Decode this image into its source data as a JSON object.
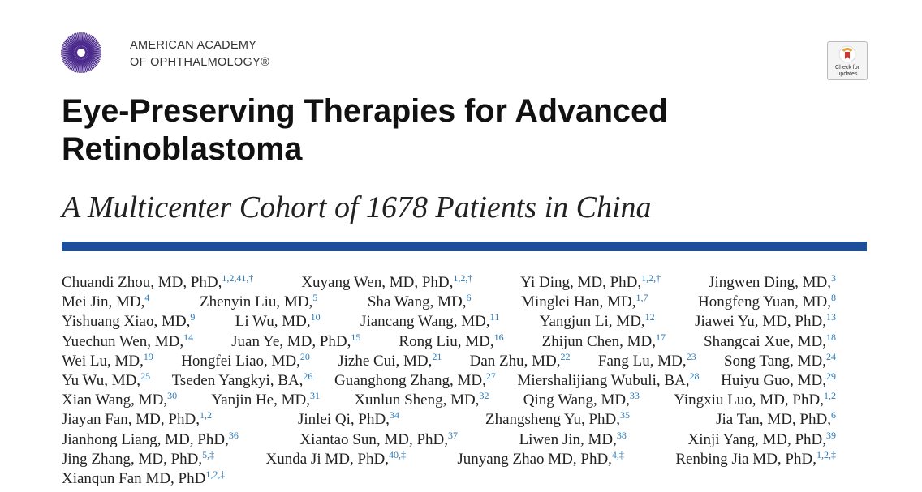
{
  "header": {
    "org_lines": [
      "AMERICAN ACADEMY",
      "OF OPHTHALMOLOGY®"
    ],
    "badge": [
      "Check for",
      "updates"
    ]
  },
  "title": "Eye-Preserving Therapies for Advanced Retinoblastoma",
  "subtitle": "A Multicenter Cohort of 1678 Patients in China",
  "author_lines": [
    [
      {
        "name": "Chuandi Zhou, MD, PhD,",
        "sup": "1,2,41,†"
      },
      {
        "name": "Xuyang Wen, MD, PhD,",
        "sup": "1,2,†"
      },
      {
        "name": "Yi Ding, MD, PhD,",
        "sup": "1,2,†"
      },
      {
        "name": "Jingwen Ding, MD,",
        "sup": "3"
      }
    ],
    [
      {
        "name": "Mei Jin, MD,",
        "sup": "4"
      },
      {
        "name": "Zhenyin Liu, MD,",
        "sup": "5"
      },
      {
        "name": "Sha Wang, MD,",
        "sup": "6"
      },
      {
        "name": "Minglei Han, MD,",
        "sup": "1,7"
      },
      {
        "name": "Hongfeng Yuan, MD,",
        "sup": "8"
      }
    ],
    [
      {
        "name": "Yishuang Xiao, MD,",
        "sup": "9"
      },
      {
        "name": "Li Wu, MD,",
        "sup": "10"
      },
      {
        "name": "Jiancang Wang, MD,",
        "sup": "11"
      },
      {
        "name": "Yangjun Li, MD,",
        "sup": "12"
      },
      {
        "name": "Jiawei Yu, MD, PhD,",
        "sup": "13"
      }
    ],
    [
      {
        "name": "Yuechun Wen, MD,",
        "sup": "14"
      },
      {
        "name": "Juan Ye, MD, PhD,",
        "sup": "15"
      },
      {
        "name": "Rong Liu, MD,",
        "sup": "16"
      },
      {
        "name": "Zhijun Chen, MD,",
        "sup": "17"
      },
      {
        "name": "Shangcai Xue, MD,",
        "sup": "18"
      }
    ],
    [
      {
        "name": "Wei Lu, MD,",
        "sup": "19"
      },
      {
        "name": "Hongfei Liao, MD,",
        "sup": "20"
      },
      {
        "name": "Jizhe Cui, MD,",
        "sup": "21"
      },
      {
        "name": "Dan Zhu, MD,",
        "sup": "22"
      },
      {
        "name": "Fang Lu, MD,",
        "sup": "23"
      },
      {
        "name": "Song Tang, MD,",
        "sup": "24"
      }
    ],
    [
      {
        "name": "Yu Wu, MD,",
        "sup": "25"
      },
      {
        "name": "Tseden Yangkyi, BA,",
        "sup": "26"
      },
      {
        "name": "Guanghong Zhang, MD,",
        "sup": "27"
      },
      {
        "name": "Miershalijiang Wubuli, BA,",
        "sup": "28"
      },
      {
        "name": "Huiyu Guo, MD,",
        "sup": "29"
      }
    ],
    [
      {
        "name": "Xian Wang, MD,",
        "sup": "30"
      },
      {
        "name": "Yanjin He, MD,",
        "sup": "31"
      },
      {
        "name": "Xunlun Sheng, MD,",
        "sup": "32"
      },
      {
        "name": "Qing Wang, MD,",
        "sup": "33"
      },
      {
        "name": "Yingxiu Luo, MD, PhD,",
        "sup": "1,2"
      }
    ],
    [
      {
        "name": "Jiayan Fan, MD, PhD,",
        "sup": "1,2"
      },
      {
        "name": "Jinlei Qi, PhD,",
        "sup": "34"
      },
      {
        "name": "Zhangsheng Yu, PhD,",
        "sup": "35"
      },
      {
        "name": "Jia Tan, MD, PhD,",
        "sup": "6"
      }
    ],
    [
      {
        "name": "Jianhong Liang, MD, PhD,",
        "sup": "36"
      },
      {
        "name": "Xiantao Sun, MD, PhD,",
        "sup": "37"
      },
      {
        "name": "Liwen Jin, MD,",
        "sup": "38"
      },
      {
        "name": "Xinji Yang, MD, PhD,",
        "sup": "39"
      }
    ],
    [
      {
        "name": "Jing Zhang, MD, PhD,",
        "sup": "5,‡"
      },
      {
        "name": "Xunda Ji MD, PhD,",
        "sup": "40,‡"
      },
      {
        "name": "Junyang Zhao MD, PhD,",
        "sup": "4,‡"
      },
      {
        "name": "Renbing Jia MD, PhD,",
        "sup": "1,2,‡"
      }
    ],
    [
      {
        "name": "Xianqun Fan MD, PhD",
        "sup": "1,2,‡"
      }
    ]
  ]
}
